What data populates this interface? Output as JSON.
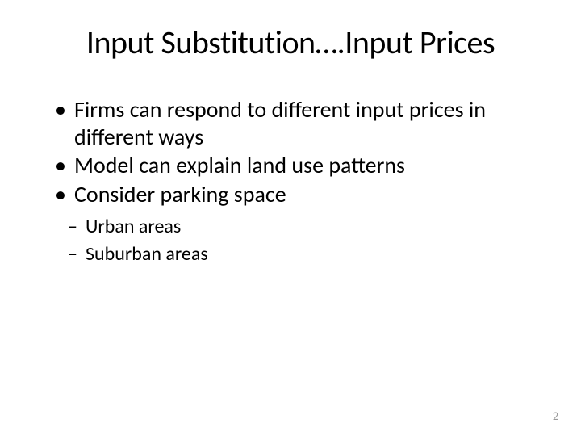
{
  "slide": {
    "title": "Input Substitution….Input Prices",
    "bullets": [
      "Firms can respond to different input prices in different ways",
      "Model can explain land use patterns",
      "Consider parking space"
    ],
    "sub_bullets": [
      "Urban areas",
      "Suburban areas"
    ],
    "page_number": "2"
  },
  "styling": {
    "background_color": "#ffffff",
    "text_color": "#000000",
    "page_number_color": "#9a9a9a",
    "title_fontsize": 40,
    "bullet_fontsize": 28,
    "sub_bullet_fontsize": 24,
    "page_number_fontsize": 14,
    "font_family": "Calibri"
  }
}
